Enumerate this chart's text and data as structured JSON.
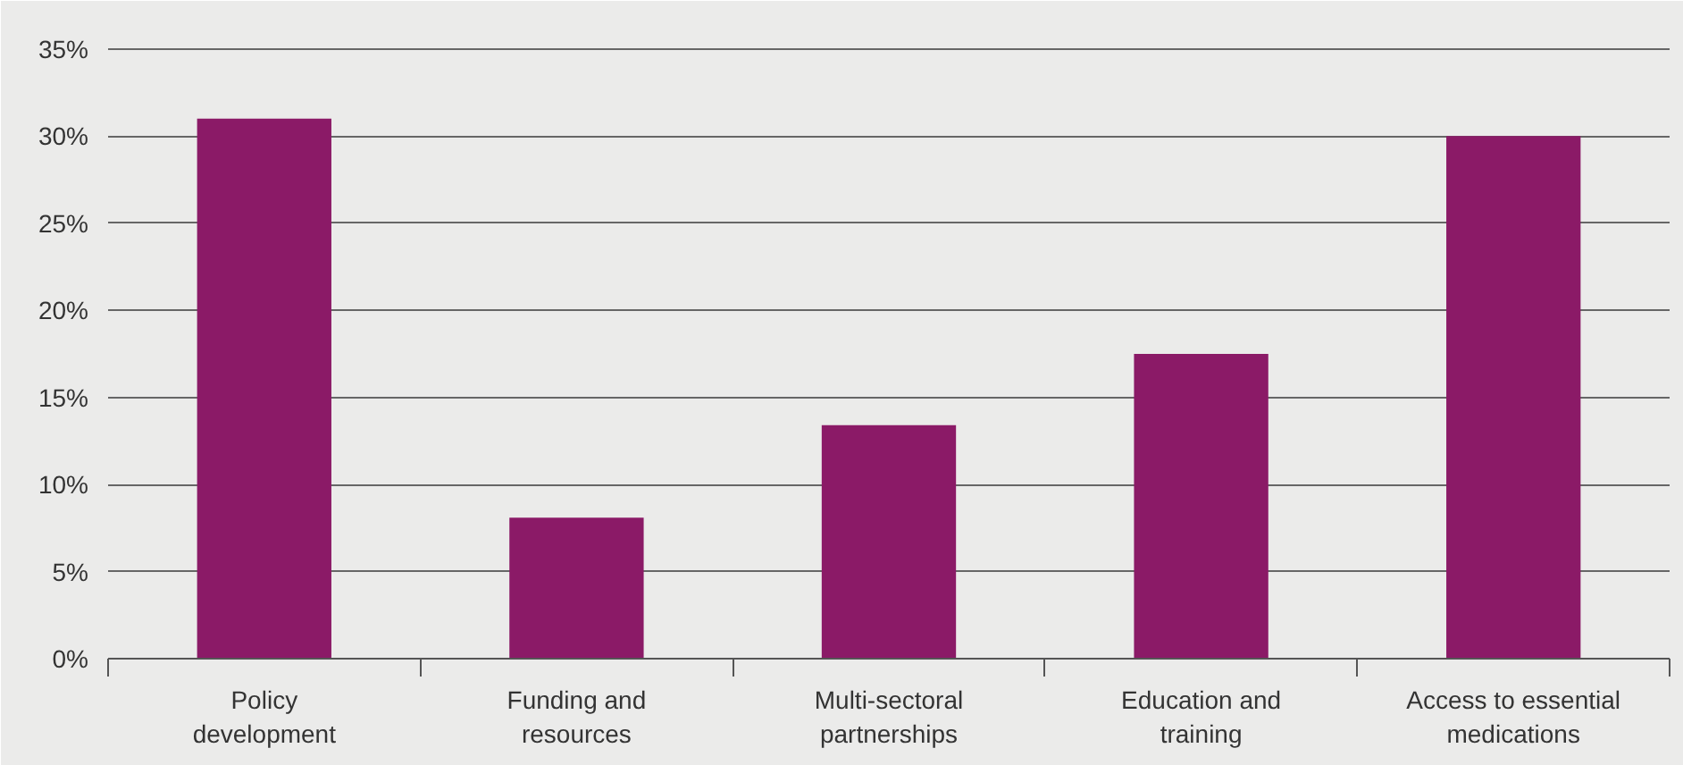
{
  "chart_data": {
    "type": "bar",
    "categories": [
      "Policy development",
      "Funding and resources",
      "Multi-sectoral partnerships",
      "Education and training",
      "Access to essential medications"
    ],
    "values": [
      31,
      8.1,
      13.4,
      17.5,
      30
    ],
    "color": "#8b1a67",
    "ylim": [
      0,
      35.2
    ],
    "yticks": [
      {
        "value": 0,
        "label": "0%"
      },
      {
        "value": 5,
        "label": "5%"
      },
      {
        "value": 10,
        "label": "10%"
      },
      {
        "value": 15,
        "label": "15%"
      },
      {
        "value": 20,
        "label": "20%"
      },
      {
        "value": 25,
        "label": "25%"
      },
      {
        "value": 30,
        "label": "30%"
      },
      {
        "value": 35,
        "label": "35%"
      }
    ],
    "grid": "y"
  }
}
